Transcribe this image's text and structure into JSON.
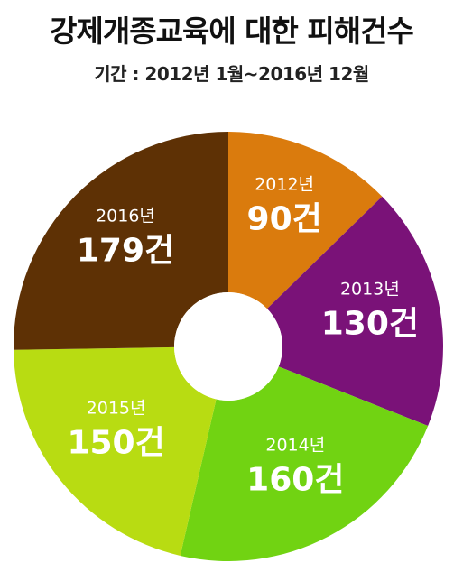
{
  "title": "강제개종교육에 대한 피해건수",
  "subtitle": "기간 : 2012년 1월~2016년 12월",
  "chart_data": {
    "type": "pie",
    "title": "강제개종교육에 대한 피해건수",
    "subtitle": "기간 : 2012년 1월~2016년 12월",
    "unit": "건",
    "slices": [
      {
        "label": "2012년",
        "value": 90,
        "value_label": "90건",
        "color": "#DA7B0D"
      },
      {
        "label": "2013년",
        "value": 130,
        "value_label": "130건",
        "color": "#7A1278"
      },
      {
        "label": "2014년",
        "value": 160,
        "value_label": "160건",
        "color": "#71D312"
      },
      {
        "label": "2015년",
        "value": 150,
        "value_label": "150건",
        "color": "#B8DC12"
      },
      {
        "label": "2016년",
        "value": 179,
        "value_label": "179건",
        "color": "#5E3105"
      }
    ]
  }
}
